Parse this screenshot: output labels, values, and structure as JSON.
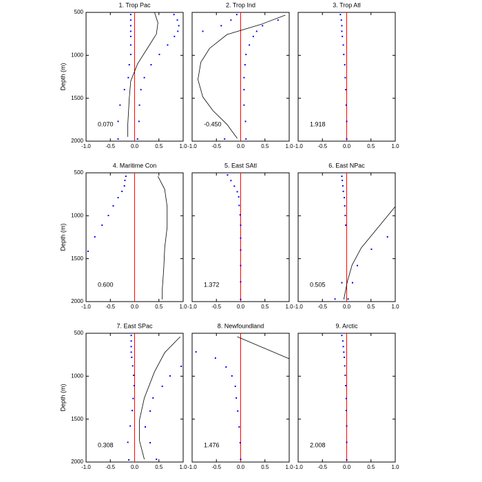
{
  "chart_data": [
    {
      "type": "scatter",
      "title": "1. Trop Pac",
      "annotation": "0.070",
      "ylabel": "Depth (m)",
      "ytick_labels": true,
      "xlim": [
        -1,
        1
      ],
      "ylim": [
        2000,
        500
      ],
      "xticks": [
        {
          "value": -1,
          "label": "-1.0"
        },
        {
          "value": -0.5,
          "label": "-0.5"
        },
        {
          "value": 0,
          "label": "0.0"
        },
        {
          "value": 0.5,
          "label": "0.5"
        },
        {
          "value": 1,
          "label": "1.0"
        }
      ],
      "yticks": [
        500,
        1000,
        1500,
        2000
      ],
      "vline": 0,
      "vline_color": "#ff0000",
      "series": [
        {
          "color": "#0000ff",
          "x": [
            -0.08,
            -0.08,
            -0.08,
            -0.08,
            -0.08,
            -0.08,
            -0.08,
            -0.11,
            -0.13,
            -0.21,
            -0.3,
            -0.34,
            -0.34
          ],
          "y": [
            525,
            590,
            655,
            720,
            780,
            880,
            990,
            1110,
            1260,
            1400,
            1580,
            1770,
            1975
          ]
        },
        {
          "color": "#0000ff",
          "x": [
            0.81,
            0.88,
            0.91,
            0.89,
            0.82,
            0.68,
            0.51,
            0.34,
            0.2,
            0.13,
            0.1,
            0.09,
            0.06
          ],
          "y": [
            525,
            590,
            655,
            720,
            780,
            880,
            990,
            1110,
            1260,
            1400,
            1580,
            1770,
            1975
          ]
        }
      ],
      "line": {
        "color": "#000000",
        "x": [
          0.41,
          0.48,
          0.45,
          0.34,
          0.06,
          -0.08,
          -0.11,
          -0.14,
          -0.14
        ],
        "y": [
          500,
          620,
          750,
          850,
          1100,
          1300,
          1500,
          1800,
          1950
        ]
      }
    },
    {
      "type": "scatter",
      "title": "2. Trop Ind",
      "annotation": "-0.450",
      "ytick_labels": false,
      "xlim": [
        -1,
        1
      ],
      "ylim": [
        2000,
        500
      ],
      "xticks": [
        {
          "value": -1,
          "label": "-1.0"
        },
        {
          "value": -0.5,
          "label": "-0.5"
        },
        {
          "value": 0,
          "label": "0.0"
        },
        {
          "value": 0.5,
          "label": "0.5"
        },
        {
          "value": 1,
          "label": "1.0"
        }
      ],
      "yticks": [
        500,
        1000,
        1500,
        2000
      ],
      "vline": 0,
      "vline_color": "#ff0000",
      "series": [
        {
          "color": "#0000ff",
          "x": [
            -0.08,
            -0.2,
            -0.4,
            -0.78,
            -0.33
          ],
          "y": [
            525,
            590,
            655,
            720,
            1975
          ]
        },
        {
          "color": "#0000ff",
          "x": [
            0.77,
            0.45,
            0.33,
            0.26,
            0.18,
            0.11,
            0.09,
            0.07,
            0.07,
            0.07,
            0.1,
            0.11
          ],
          "y": [
            590,
            655,
            720,
            780,
            880,
            990,
            1110,
            1260,
            1400,
            1580,
            1770,
            1975
          ]
        }
      ],
      "line": {
        "color": "#000000",
        "x": [
          0.92,
          0.43,
          -0.28,
          -0.64,
          -0.82,
          -0.88,
          -0.78,
          -0.57,
          -0.28,
          -0.07
        ],
        "y": [
          532,
          637,
          758,
          919,
          1081,
          1282,
          1484,
          1645,
          1806,
          1968
        ]
      }
    },
    {
      "type": "scatter",
      "title": "3. Trop Atl",
      "annotation": "1.918",
      "ytick_labels": false,
      "xlim": [
        -1,
        1
      ],
      "ylim": [
        2000,
        500
      ],
      "xticks": [
        {
          "value": -1,
          "label": "-1.0"
        },
        {
          "value": -0.5,
          "label": "-0.5"
        },
        {
          "value": 0,
          "label": "0.0"
        },
        {
          "value": 0.5,
          "label": "0.5"
        },
        {
          "value": 1,
          "label": "1.0"
        }
      ],
      "yticks": [
        500,
        1000,
        1500,
        2000
      ],
      "vline": 0,
      "vline_color": "#ff0000",
      "series": [
        {
          "color": "#0000ff",
          "x": [
            -0.13,
            -0.11,
            -0.1,
            -0.1,
            -0.09,
            -0.07,
            -0.06,
            -0.04,
            -0.03,
            -0.02,
            -0.01,
            0,
            0
          ],
          "y": [
            525,
            590,
            655,
            720,
            780,
            880,
            990,
            1110,
            1260,
            1400,
            1580,
            1770,
            1975
          ]
        }
      ]
    },
    {
      "type": "scatter",
      "title": "4. Maritime Con",
      "annotation": "0.600",
      "ylabel": "Depth (m)",
      "ytick_labels": true,
      "xlim": [
        -1,
        1
      ],
      "ylim": [
        2000,
        500
      ],
      "xticks": [
        {
          "value": -1,
          "label": "-1.0"
        },
        {
          "value": -0.5,
          "label": "-0.5"
        },
        {
          "value": 0,
          "label": "0.0"
        },
        {
          "value": 0.5,
          "label": "0.5"
        },
        {
          "value": 1,
          "label": "1.0"
        }
      ],
      "yticks": [
        500,
        1000,
        1500,
        2000
      ],
      "vline": 0,
      "vline_color": "#ff0000",
      "series": [
        {
          "color": "#0000ff",
          "x": [
            -0.18,
            -0.2,
            -0.21,
            -0.26,
            -0.34,
            -0.44,
            -0.54,
            -0.67,
            -0.82,
            -0.96
          ],
          "y": [
            540,
            588,
            652,
            716,
            789,
            885,
            997,
            1110,
            1246,
            1414
          ]
        }
      ],
      "line": {
        "color": "#000000",
        "x": [
          0.48,
          0.62,
          0.67,
          0.67,
          0.62,
          0.6,
          0.57,
          0.57
        ],
        "y": [
          540,
          693,
          893,
          1134,
          1374,
          1615,
          1856,
          1976
        ]
      }
    },
    {
      "type": "scatter",
      "title": "5. East SAtl",
      "annotation": "1.372",
      "ytick_labels": false,
      "xlim": [
        -1,
        1
      ],
      "ylim": [
        2000,
        500
      ],
      "xticks": [
        {
          "value": -1,
          "label": "-1.0"
        },
        {
          "value": -0.5,
          "label": "-0.5"
        },
        {
          "value": 0,
          "label": "0.0"
        },
        {
          "value": 0.5,
          "label": "0.5"
        },
        {
          "value": 1,
          "label": "1.0"
        }
      ],
      "yticks": [
        500,
        1000,
        1500,
        2000
      ],
      "vline": 0,
      "vline_color": "#ff0000",
      "series": [
        {
          "color": "#0000ff",
          "x": [
            -0.27,
            -0.2,
            -0.13,
            -0.07,
            -0.04,
            -0.03,
            -0.01,
            0,
            0,
            0,
            0,
            0,
            0
          ],
          "y": [
            525,
            590,
            655,
            720,
            780,
            880,
            990,
            1110,
            1260,
            1400,
            1580,
            1770,
            1975
          ]
        }
      ]
    },
    {
      "type": "scatter",
      "title": "6. East NPac",
      "annotation": "0.505",
      "ytick_labels": false,
      "xlim": [
        -1,
        1
      ],
      "ylim": [
        2000,
        500
      ],
      "xticks": [
        {
          "value": -1,
          "label": "-1.0"
        },
        {
          "value": -0.5,
          "label": "-0.5"
        },
        {
          "value": 0,
          "label": "0.0"
        },
        {
          "value": 0.5,
          "label": "0.5"
        },
        {
          "value": 1,
          "label": "1.0"
        }
      ],
      "yticks": [
        500,
        1000,
        1500,
        2000
      ],
      "vline": 0,
      "vline_color": "#ff0000",
      "series": [
        {
          "color": "#0000ff",
          "x": [
            -0.1,
            -0.09,
            -0.08,
            -0.07,
            -0.05,
            -0.04,
            -0.03,
            -0.02,
            0.84,
            0.51,
            0.22,
            -0.1,
            0.12,
            -0.24,
            0.03
          ],
          "y": [
            540,
            588,
            652,
            716,
            789,
            885,
            997,
            1110,
            1246,
            1390,
            1580,
            1780,
            1780,
            1970,
            1970
          ]
        }
      ],
      "line": {
        "color": "#000000",
        "x": [
          1.0,
          0.65,
          0.3,
          0.11,
          0.01,
          -0.06
        ],
        "y": [
          893,
          1134,
          1374,
          1575,
          1775,
          1976
        ]
      }
    },
    {
      "type": "scatter",
      "title": "7. East SPac",
      "annotation": "0.308",
      "ylabel": "Depth (m)",
      "ytick_labels": true,
      "xlim": [
        -1,
        1
      ],
      "ylim": [
        2000,
        500
      ],
      "xticks": [
        {
          "value": -1,
          "label": "-1.0"
        },
        {
          "value": -0.5,
          "label": "-0.5"
        },
        {
          "value": 0,
          "label": "0.0"
        },
        {
          "value": 0.5,
          "label": "0.5"
        },
        {
          "value": 1,
          "label": "1.0"
        }
      ],
      "yticks": [
        500,
        1000,
        1500,
        2000
      ],
      "vline": 0,
      "vline_color": "#ff0000",
      "series": [
        {
          "color": "#0000ff",
          "x": [
            -0.07,
            -0.07,
            -0.07,
            -0.07,
            -0.06,
            -0.04,
            -0.02,
            -0.01,
            -0.03,
            -0.05,
            -0.09,
            -0.14,
            -0.12
          ],
          "y": [
            525,
            590,
            655,
            720,
            780,
            880,
            990,
            1110,
            1260,
            1400,
            1580,
            1770,
            1975
          ]
        },
        {
          "color": "#0000ff",
          "x": [
            0.96,
            0.73,
            0.57,
            0.38,
            0.32,
            0.22,
            0.32,
            0.45
          ],
          "y": [
            885,
            997,
            1118,
            1254,
            1406,
            1591,
            1775,
            1968
          ]
        }
      ],
      "line": {
        "color": "#000000",
        "x": [
          0.94,
          0.62,
          0.41,
          0.2,
          0.1,
          0.1,
          0.2
        ],
        "y": [
          540,
          725,
          949,
          1254,
          1510,
          1751,
          1968
        ]
      }
    },
    {
      "type": "scatter",
      "title": "8. Newfoundland",
      "annotation": "1.476",
      "ytick_labels": false,
      "xlim": [
        -1,
        1
      ],
      "ylim": [
        2000,
        500
      ],
      "xticks": [
        {
          "value": -1,
          "label": "-1.0"
        },
        {
          "value": -0.5,
          "label": "-0.5"
        },
        {
          "value": 0,
          "label": "0.0"
        },
        {
          "value": 0.5,
          "label": "0.5"
        },
        {
          "value": 1,
          "label": "1.0"
        }
      ],
      "yticks": [
        500,
        1000,
        1500,
        2000
      ],
      "vline": 0,
      "vline_color": "#ff0000",
      "series": [
        {
          "color": "#0000ff",
          "x": [
            -0.92,
            -0.52,
            -0.3,
            -0.18,
            -0.11,
            -0.09,
            -0.06,
            -0.03,
            -0.01,
            0
          ],
          "y": [
            717,
            789,
            893,
            997,
            1118,
            1254,
            1406,
            1591,
            1775,
            1968
          ]
        }
      ],
      "line": {
        "color": "#000000",
        "x": [
          -0.07,
          1.0
        ],
        "y": [
          540,
          797
        ]
      }
    },
    {
      "type": "scatter",
      "title": "9. Arctic",
      "annotation": "2.008",
      "ytick_labels": false,
      "xlim": [
        -1,
        1
      ],
      "ylim": [
        2000,
        500
      ],
      "xticks": [
        {
          "value": -1,
          "label": "-1.0"
        },
        {
          "value": -0.5,
          "label": "-0.5"
        },
        {
          "value": 0,
          "label": "0.0"
        },
        {
          "value": 0.5,
          "label": "0.5"
        },
        {
          "value": 1,
          "label": "1.0"
        }
      ],
      "yticks": [
        500,
        1000,
        1500,
        2000
      ],
      "vline": 0,
      "vline_color": "#ff0000",
      "series": [
        {
          "color": "#0000ff",
          "x": [
            -0.1,
            -0.08,
            -0.07,
            -0.06,
            -0.05,
            -0.04,
            -0.03,
            -0.02,
            -0.01,
            -0.01,
            0,
            0,
            0
          ],
          "y": [
            525,
            590,
            655,
            720,
            780,
            880,
            990,
            1110,
            1260,
            1400,
            1580,
            1770,
            1975
          ]
        }
      ]
    }
  ]
}
